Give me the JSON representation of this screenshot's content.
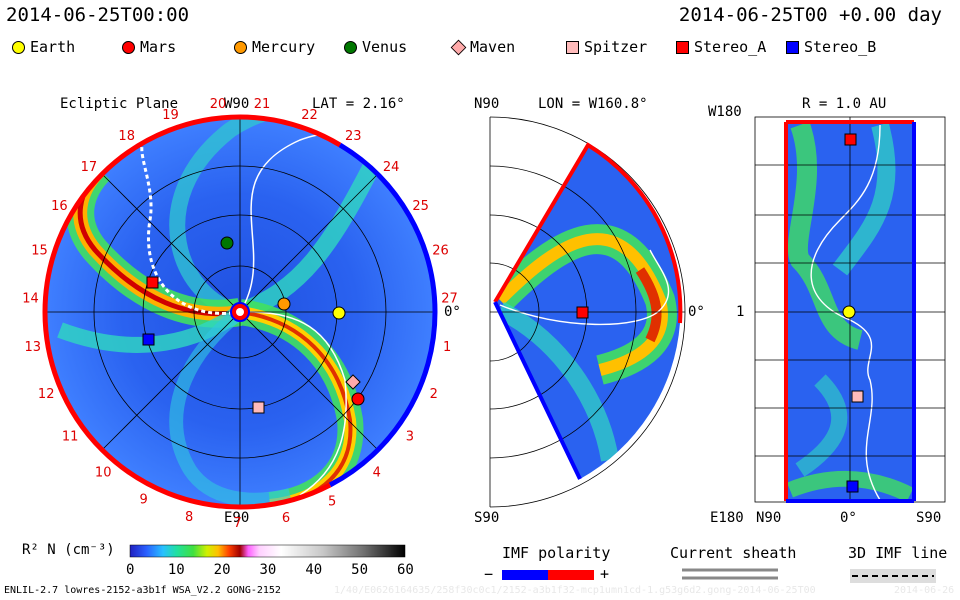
{
  "header": {
    "left_time": "2014-06-25T00:00",
    "right_time": "2014-06-25T00 +0.00 day"
  },
  "legend": [
    {
      "name": "Earth",
      "shape": "circle",
      "color": "#ffff00"
    },
    {
      "name": "Mars",
      "shape": "circle",
      "color": "#ff0000"
    },
    {
      "name": "Mercury",
      "shape": "circle",
      "color": "#ff9900"
    },
    {
      "name": "Venus",
      "shape": "circle",
      "color": "#007700"
    },
    {
      "name": "Maven",
      "shape": "diamond",
      "color": "#ffaaaa"
    },
    {
      "name": "Spitzer",
      "shape": "square",
      "color": "#ffbbbb"
    },
    {
      "name": "Stereo_A",
      "shape": "square",
      "color": "#ff0000"
    },
    {
      "name": "Stereo_B",
      "shape": "square",
      "color": "#0000ff"
    }
  ],
  "panels": {
    "ecliptic": {
      "title": "Ecliptic Plane",
      "top_label": "W90",
      "bottom_label": "E90",
      "right_label": "0°",
      "lat_label": "LAT = 2.16°",
      "carrington_red": [
        "20",
        "19",
        "18",
        "17",
        "16",
        "15",
        "14",
        "13",
        "12",
        "11",
        "10",
        "9",
        "8",
        "7",
        "6",
        "5"
      ],
      "carrington_black": [
        "21",
        "22",
        "23",
        "24",
        "25",
        "26",
        "27",
        "1",
        "2",
        "3",
        "4"
      ]
    },
    "meridional": {
      "top_label": "N90",
      "bottom_label": "S90",
      "right_label": "0°",
      "lon_label": "LON = W160.8°"
    },
    "radial": {
      "title": "R = 1.0 AU",
      "top_label": "W180",
      "mid_label": "1",
      "bottom_left": "E180",
      "x_labels": [
        "N90",
        "0°",
        "S90"
      ]
    }
  },
  "colorbar": {
    "label": "R² N (cm⁻³)",
    "ticks": [
      "0",
      "10",
      "20",
      "30",
      "40",
      "50",
      "60"
    ]
  },
  "imf": {
    "label": "IMF polarity",
    "minus": "−",
    "plus": "+"
  },
  "current_sheath": {
    "label": "Current sheath"
  },
  "imf_line": {
    "label": "3D IMF line"
  },
  "footer": {
    "left": "ENLIL-2.7 lowres-2152-a3b1f WSA_V2.2 GONG-2152",
    "middle": "1/40/E0626164635/258f30c0c1/2152-a3b1f32-mcp1umn1cd-1.g53g6d2.gong-2014-06-25T00",
    "right": "2014-06-26"
  }
}
